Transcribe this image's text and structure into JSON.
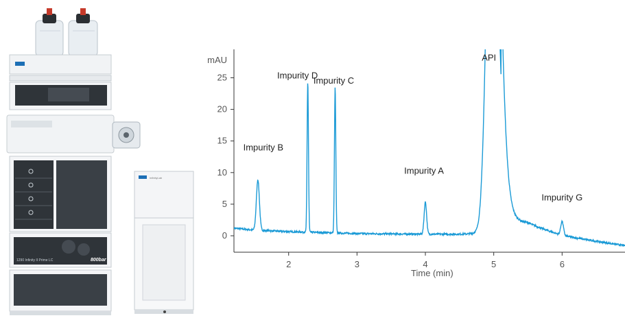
{
  "instrument": {
    "brand": "Agilent",
    "model_badge": "1290 Infinity II Prime LC",
    "pressure_badge": "800bar",
    "detector_badge": "InfinityLab"
  },
  "chart_data": {
    "type": "line",
    "title": "",
    "xlabel": "Time (min)",
    "ylabel": "mAU",
    "xlim": [
      1.2,
      6.92
    ],
    "ylim": [
      -2.6,
      29.5
    ],
    "xticks": [
      2,
      3,
      4,
      5,
      6
    ],
    "yticks": [
      0,
      5,
      10,
      15,
      20,
      25
    ],
    "line_color": "#1a9ad6",
    "baseline": [
      [
        1.2,
        1.2
      ],
      [
        1.5,
        0.9
      ],
      [
        2.0,
        0.65
      ],
      [
        2.5,
        0.5
      ],
      [
        3.0,
        0.35
      ],
      [
        3.5,
        0.3
      ],
      [
        4.0,
        0.25
      ],
      [
        4.5,
        0.25
      ],
      [
        4.62,
        0.3
      ],
      [
        5.5,
        1.2
      ],
      [
        6.0,
        -0.2
      ],
      [
        6.92,
        -1.6
      ]
    ],
    "peaks": [
      {
        "name": "Impurity B",
        "time": 1.55,
        "height": 8.0,
        "width": 0.022
      },
      {
        "name": "Impurity D",
        "time": 2.28,
        "height": 23.8,
        "width": 0.01
      },
      {
        "name": "Impurity C",
        "time": 2.68,
        "height": 23.0,
        "width": 0.01
      },
      {
        "name": "Impurity A",
        "time": 4.0,
        "height": 5.1,
        "width": 0.018
      },
      {
        "name": "API",
        "time": 4.96,
        "height": 60,
        "width": 0.14
      },
      {
        "name": "Impurity G",
        "time": 6.0,
        "height": 2.2,
        "width": 0.02
      }
    ],
    "annotations": [
      {
        "text": "Impurity B",
        "x": 1.63,
        "y": 13.5
      },
      {
        "text": "Impurity D",
        "x": 2.13,
        "y": 24.9
      },
      {
        "text": "Impurity C",
        "x": 2.66,
        "y": 24.1
      },
      {
        "text": "Impurity A",
        "x": 3.98,
        "y": 9.8
      },
      {
        "text": "API",
        "x": 4.93,
        "y": 27.7
      },
      {
        "text": "Impurity G",
        "x": 6.0,
        "y": 5.6
      }
    ]
  }
}
